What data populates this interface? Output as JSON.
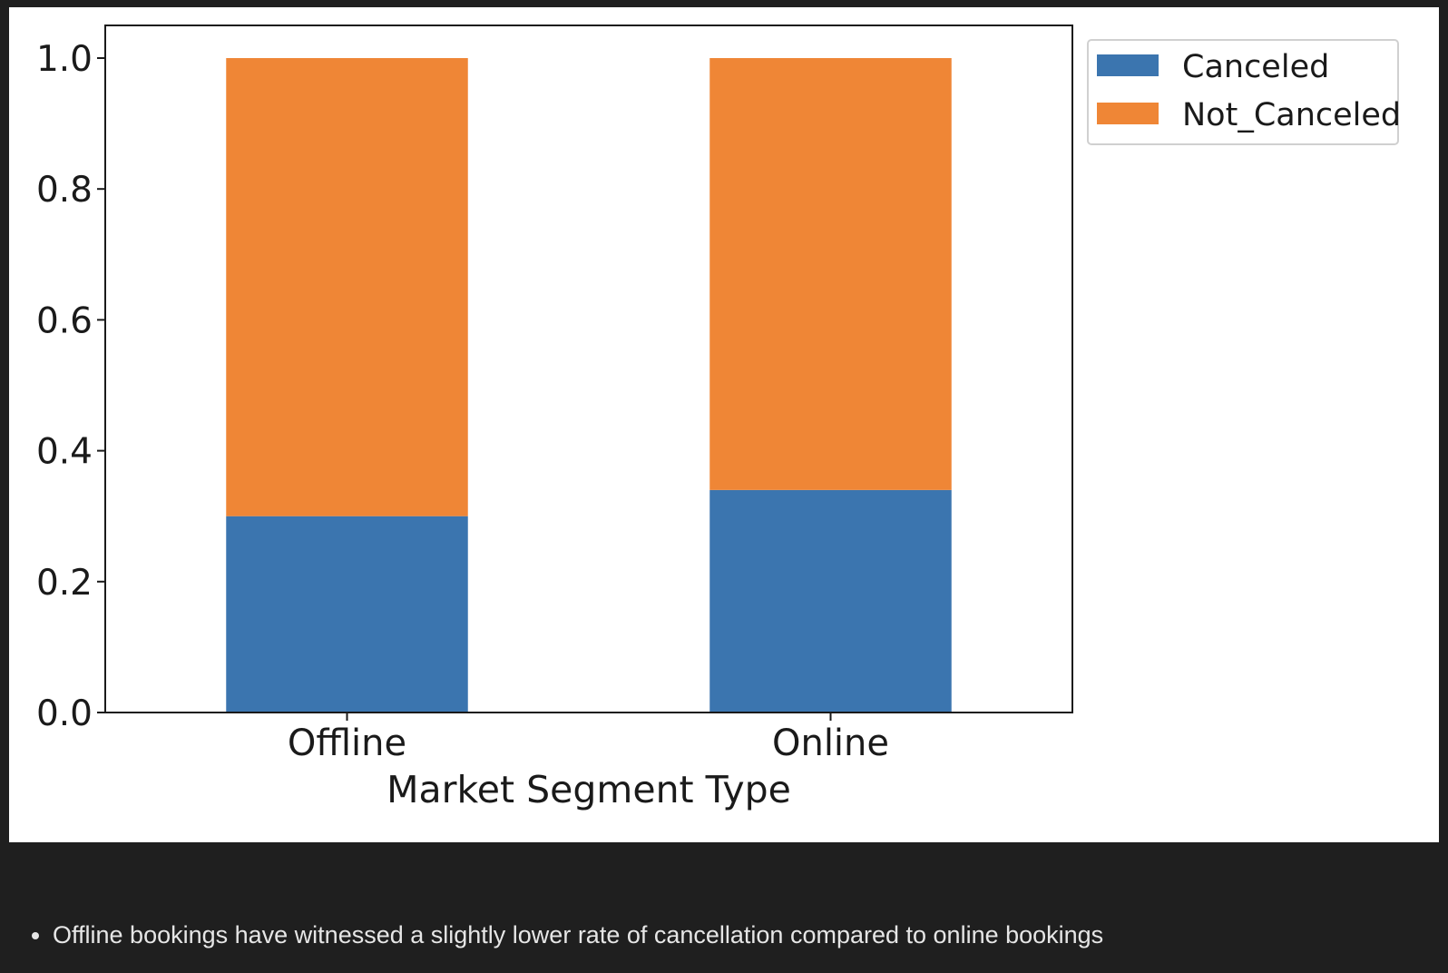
{
  "chart_data": {
    "type": "bar",
    "stacked": true,
    "title": "",
    "xlabel": "Market Segment Type",
    "ylabel": "",
    "categories": [
      "Offline",
      "Online"
    ],
    "ylim": [
      0,
      1.0
    ],
    "yticks": [
      "0.0",
      "0.2",
      "0.4",
      "0.6",
      "0.8",
      "1.0"
    ],
    "series": [
      {
        "name": "Canceled",
        "values": [
          0.3,
          0.34
        ],
        "color": "#3b75af"
      },
      {
        "name": "Not_Canceled",
        "values": [
          0.7,
          0.66
        ],
        "color": "#ef8636"
      }
    ],
    "legend": "top-right-outside",
    "grid": false
  },
  "notes": [
    "Offline bookings have witnessed a slightly lower rate of cancellation compared to online bookings"
  ]
}
